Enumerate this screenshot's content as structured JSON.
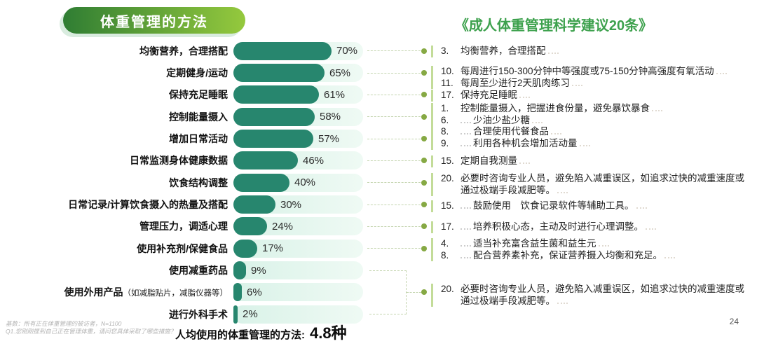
{
  "header": {
    "left_title": "体重管理的方法",
    "right_title": "《成人体重管理科学建议20条》"
  },
  "chart_data": {
    "type": "bar",
    "orientation": "horizontal",
    "title": "体重管理的方法",
    "unit": "%",
    "xlim": [
      0,
      100
    ],
    "categories": [
      "均衡营养，合理搭配",
      "定期健身/运动",
      "保持充足睡眠",
      "控制能量摄入",
      "增加日常活动",
      "日常监测身体健康数据",
      "饮食结构调整",
      "日常记录/计算饮食摄入的热量及搭配",
      "管理压力，调适心理",
      "使用补充剂/保健食品",
      "使用减重药品",
      "使用外用产品",
      "进行外科手术"
    ],
    "values": [
      70,
      65,
      61,
      58,
      57,
      46,
      40,
      30,
      24,
      17,
      9,
      6,
      2
    ],
    "bars": [
      {
        "label": "均衡营养，合理搭配",
        "value": 70,
        "value_label": "70%"
      },
      {
        "label": "定期健身/运动",
        "value": 65,
        "value_label": "65%"
      },
      {
        "label": "保持充足睡眠",
        "value": 61,
        "value_label": "61%"
      },
      {
        "label": "控制能量摄入",
        "value": 58,
        "value_label": "58%"
      },
      {
        "label": "增加日常活动",
        "value": 57,
        "value_label": "57%"
      },
      {
        "label": "日常监测身体健康数据",
        "value": 46,
        "value_label": "46%"
      },
      {
        "label": "饮食结构调整",
        "value": 40,
        "value_label": "40%"
      },
      {
        "label": "日常记录/计算饮食摄入的热量及搭配",
        "value": 30,
        "value_label": "30%"
      },
      {
        "label": "管理压力，调适心理",
        "value": 24,
        "value_label": "24%"
      },
      {
        "label": "使用补充剂/保健食品",
        "value": 17,
        "value_label": "17%"
      },
      {
        "label": "使用减重药品",
        "value": 9,
        "value_label": "9%"
      },
      {
        "label": "使用外用产品",
        "sublabel": "（如减脂贴片，减脂仪器等）",
        "value": 6,
        "value_label": "6%"
      },
      {
        "label": "进行外科手术",
        "value": 2,
        "value_label": "2%"
      }
    ]
  },
  "recommendations": {
    "title": "《成人体重管理科学建议20条》",
    "groups": [
      {
        "anchor_bar_index": 0,
        "items": [
          {
            "num": "3.",
            "text": "均衡营养，合理搭配",
            "leader": false
          }
        ]
      },
      {
        "anchor_bar_index": 1,
        "items": [
          {
            "num": "10.",
            "text": "每周进行150-300分钟中等强度或75-150分钟高强度有氧活动",
            "leader": false
          },
          {
            "num": "11.",
            "text": "每周至少进行2天肌肉练习",
            "leader": false
          }
        ]
      },
      {
        "anchor_bar_index": 2,
        "items": [
          {
            "num": "17.",
            "text": "保持充足睡眠",
            "leader": false
          }
        ]
      },
      {
        "anchor_bar_index": 3,
        "items": [
          {
            "num": "1.",
            "text": "控制能量摄入，把握进食份量，避免暴饮暴食",
            "leader": false
          },
          {
            "num": "6.",
            "text": "少油少盐少糖",
            "leader": true
          },
          {
            "num": "8.",
            "text": "合理使用代餐食品",
            "leader": true
          }
        ]
      },
      {
        "anchor_bar_index": 4,
        "items": [
          {
            "num": "9.",
            "text": "利用各种机会增加活动量",
            "leader": true
          }
        ]
      },
      {
        "anchor_bar_index": 5,
        "items": [
          {
            "num": "15.",
            "text": "定期自我测量",
            "leader": false
          }
        ]
      },
      {
        "anchor_bar_index": 6,
        "items": [
          {
            "num": "20.",
            "text": "必要时咨询专业人员，避免陷入减重误区，如追求过快的减重速度或通过极端手段减肥等。",
            "leader": false
          }
        ]
      },
      {
        "anchor_bar_index": 7,
        "items": [
          {
            "num": "15.",
            "text": "鼓励使用　饮食记录软件等辅助工具。",
            "leader": true
          }
        ]
      },
      {
        "anchor_bar_index": 8,
        "items": [
          {
            "num": "17.",
            "text": "培养积极心态，主动及时进行心理调整。",
            "leader": true
          }
        ]
      },
      {
        "anchor_bar_index": 9,
        "items": [
          {
            "num": "4.",
            "text": "适当补充富含益生菌和益生元",
            "leader": true
          },
          {
            "num": "8.",
            "text": "配合营养素补充，保证营养摄入均衡和充足。",
            "leader": true
          }
        ]
      },
      {
        "anchor_bar_index": "10-12",
        "items": [
          {
            "num": "20.",
            "text": "必要时咨询专业人员，避免陷入减重误区，如追求过快的减重速度或通过极端手段减肥等。",
            "leader": false
          }
        ]
      }
    ]
  },
  "summary": {
    "label": "人均使用的体重管理的方法:",
    "value": "4.8种"
  },
  "footnotes": [
    "基数：所有正在体重管理的被访者，N=1100",
    "Q1.您刚刚提到自己正在管理体重，请问您具体采取了哪些措施？"
  ],
  "page_number": "24",
  "colors": {
    "bar": "#27866e",
    "track": "#d9f2e8",
    "badge_gradient_start": "#2f7d33",
    "badge_gradient_end": "#95c93d",
    "accent_green": "#3da14d",
    "dot_green": "#86a944",
    "group_line_green": "#c3dc99",
    "dash_line": "#c3d4ae"
  }
}
